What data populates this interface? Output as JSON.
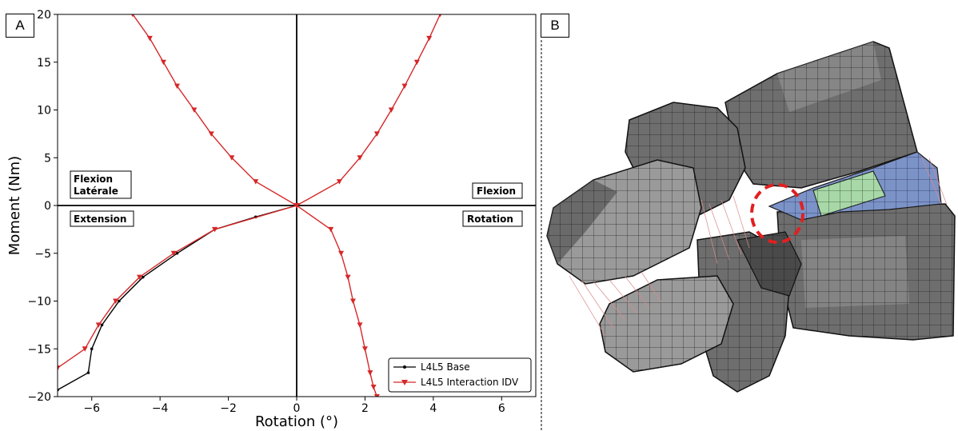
{
  "panel_labels": {
    "a": "A",
    "b": "B"
  },
  "figure_b": {
    "description_icon": "vertebra-mesh-icon"
  },
  "colors": {
    "base": "#000000",
    "interaction": "#d62728",
    "disc_green": "#a8d8a8",
    "disc_blue": "#7c93c8",
    "marker_circle": "#e02020"
  },
  "chart_data": {
    "type": "line",
    "xlabel": "Rotation (°)",
    "ylabel": "Moment (Nm)",
    "xlim": [
      -7,
      7
    ],
    "ylim": [
      -20,
      20
    ],
    "xticks": [
      -6,
      -4,
      -2,
      0,
      2,
      4,
      6
    ],
    "yticks": [
      -20,
      -15,
      -10,
      -5,
      0,
      5,
      10,
      15,
      20
    ],
    "quadrant_labels": {
      "top_left": [
        "Flexion",
        "Latérale"
      ],
      "top_right": "Flexion",
      "bottom_left": "Extension",
      "bottom_right": "Rotation"
    },
    "legend": {
      "position": "lower-right"
    },
    "series": [
      {
        "name": "L4L5 Base",
        "color": "#000000",
        "marker": "dot",
        "curves": [
          {
            "x": [
              -7,
              -6.1,
              -6.0,
              -5.7,
              -5.2,
              -4.5,
              -3.5,
              -2.4,
              -1.2,
              0
            ],
            "y": [
              -19.3,
              -17.5,
              -15,
              -12.5,
              -10,
              -7.5,
              -5,
              -2.5,
              -1.2,
              0
            ]
          }
        ]
      },
      {
        "name": "L4L5 Interaction IDV",
        "color": "#d62728",
        "marker": "triangle-down",
        "curves": [
          {
            "x": [
              0,
              1.25,
              1.85,
              2.35,
              2.77,
              3.16,
              3.52,
              3.88,
              4.2,
              4.42,
              4.6
            ],
            "y": [
              0,
              2.5,
              5,
              7.5,
              10,
              12.5,
              15,
              17.5,
              20,
              21.4,
              22.5
            ]
          },
          {
            "x": [
              0,
              -1.2,
              -1.9,
              -2.5,
              -3.0,
              -3.5,
              -3.9,
              -4.3,
              -4.8,
              -5.1,
              -5.3
            ],
            "y": [
              0,
              2.5,
              5,
              7.5,
              10,
              12.5,
              15,
              17.5,
              20,
              21.4,
              22.5
            ]
          },
          {
            "x": [
              0,
              1.0,
              1.3,
              1.5,
              1.65,
              1.85,
              2.0,
              2.15,
              2.25,
              2.35,
              2.45,
              2.7
            ],
            "y": [
              0,
              -2.5,
              -5,
              -7.5,
              -10,
              -12.5,
              -15,
              -17.5,
              -19,
              -20,
              -20.5,
              -21.4
            ]
          },
          {
            "x": [
              0,
              -2.4,
              -3.6,
              -4.6,
              -5.3,
              -5.8,
              -6.2,
              -7
            ],
            "y": [
              0,
              -2.5,
              -5,
              -7.5,
              -10,
              -12.5,
              -15,
              -17
            ]
          }
        ]
      }
    ]
  }
}
